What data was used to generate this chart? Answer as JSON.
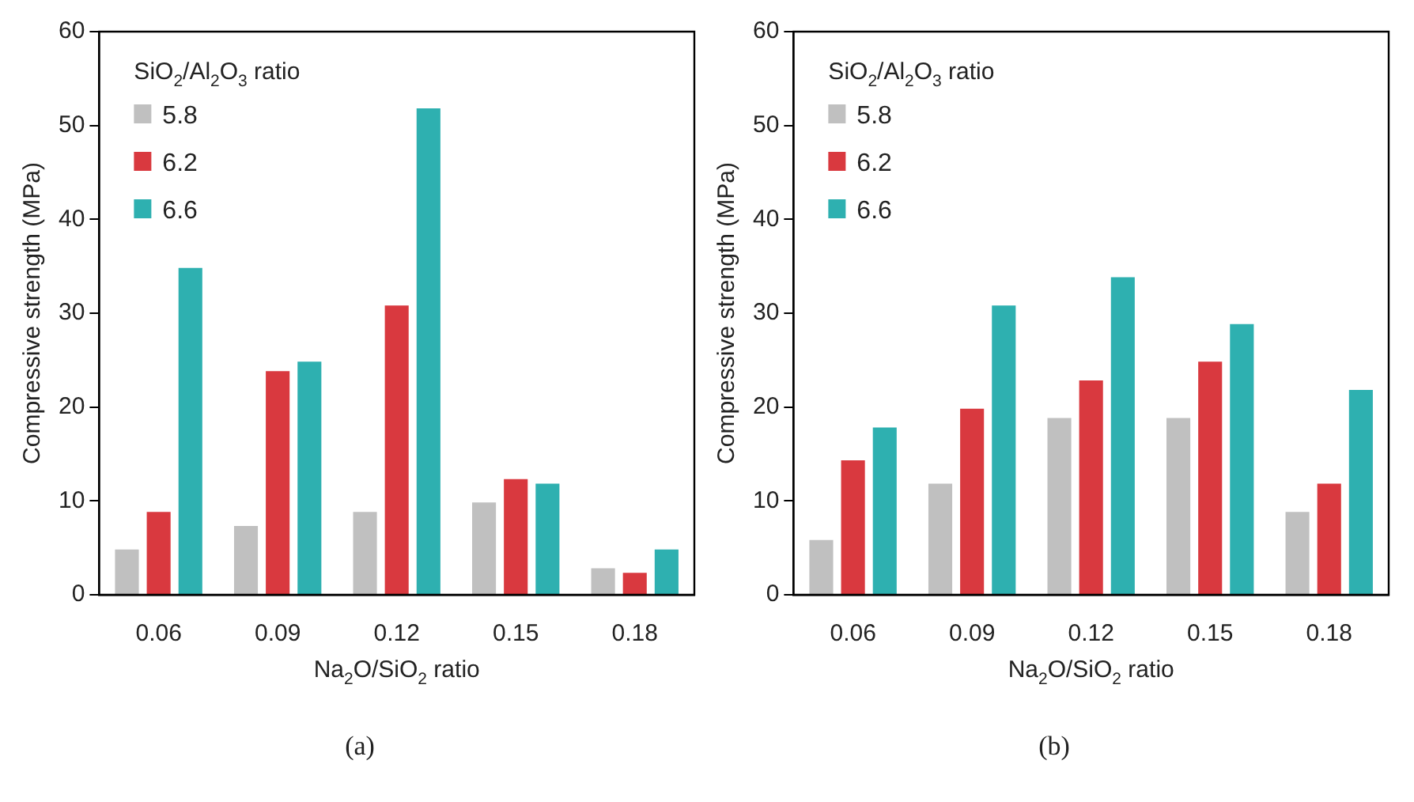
{
  "chart_data": [
    {
      "type": "bar",
      "categories": [
        "0.06",
        "0.09",
        "0.12",
        "0.15",
        "0.18"
      ],
      "xlabel": "Na$_{2}$O/SiO$_{2}$ ratio",
      "ylabel": "Compressive strength (MPa)",
      "legend_title": "SiO$_{2}$/Al$_{2}$O$_{3}$ ratio",
      "legend": "top left",
      "ylim": [
        0,
        60
      ],
      "yticks": [
        0,
        10,
        20,
        30,
        40,
        50,
        60
      ],
      "annotations": [
        "(a)"
      ],
      "series": [
        {
          "name": "5.8",
          "color": "#c0c0c0",
          "values": [
            5,
            7.5,
            9,
            10,
            3
          ]
        },
        {
          "name": "6.2",
          "color": "#d9393f",
          "values": [
            9,
            24,
            31,
            12.5,
            2.5
          ]
        },
        {
          "name": "6.6",
          "color": "#2eb0b0",
          "values": [
            35,
            25,
            52,
            12,
            5
          ]
        }
      ]
    },
    {
      "type": "bar",
      "categories": [
        "0.06",
        "0.09",
        "0.12",
        "0.15",
        "0.18"
      ],
      "xlabel": "Na$_{2}$O/SiO$_{2}$ ratio",
      "ylabel": "Compressive strength (MPa)",
      "legend_title": "SiO$_{2}$/Al$_{2}$O$_{3}$ ratio",
      "legend": "top left",
      "ylim": [
        0,
        60
      ],
      "yticks": [
        0,
        10,
        20,
        30,
        40,
        50,
        60
      ],
      "annotations": [
        "(b)"
      ],
      "series": [
        {
          "name": "5.8",
          "color": "#c0c0c0",
          "values": [
            6,
            12,
            19,
            19,
            9
          ]
        },
        {
          "name": "6.2",
          "color": "#d9393f",
          "values": [
            14.5,
            20,
            23,
            25,
            12
          ]
        },
        {
          "name": "6.6",
          "color": "#2eb0b0",
          "values": [
            18,
            31,
            34,
            29,
            22
          ]
        }
      ]
    }
  ]
}
